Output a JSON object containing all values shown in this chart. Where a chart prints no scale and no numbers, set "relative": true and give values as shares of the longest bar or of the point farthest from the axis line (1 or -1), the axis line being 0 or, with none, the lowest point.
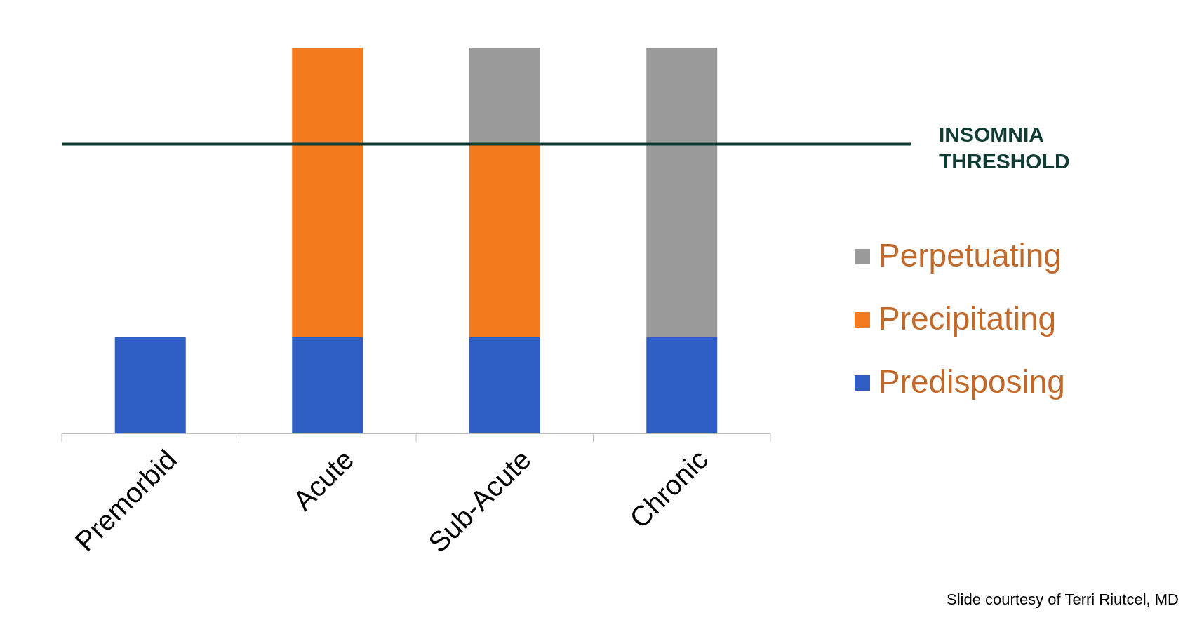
{
  "chart_data": {
    "type": "bar",
    "stacked": true,
    "relative": true,
    "categories": [
      "Premorbid",
      "Acute",
      "Sub-Acute",
      "Chronic"
    ],
    "series": [
      {
        "name": "Predisposing",
        "color": "#2f5fc4",
        "values": [
          0.25,
          0.25,
          0.25,
          0.25
        ]
      },
      {
        "name": "Precipitating",
        "color": "#f47a20",
        "values": [
          0,
          0.75,
          0.5,
          0
        ]
      },
      {
        "name": "Perpetuating",
        "color": "#9a9a9a",
        "values": [
          0,
          0,
          0.25,
          0.75
        ]
      }
    ],
    "ref_lines": [
      {
        "axis": "y",
        "value": 0.75,
        "label": "INSOMNIA THRESHOLD",
        "color": "#0f3d33"
      }
    ],
    "legend": "right",
    "annotations": [
      "Slide courtesy of Terri Riutcel, MD"
    ]
  }
}
